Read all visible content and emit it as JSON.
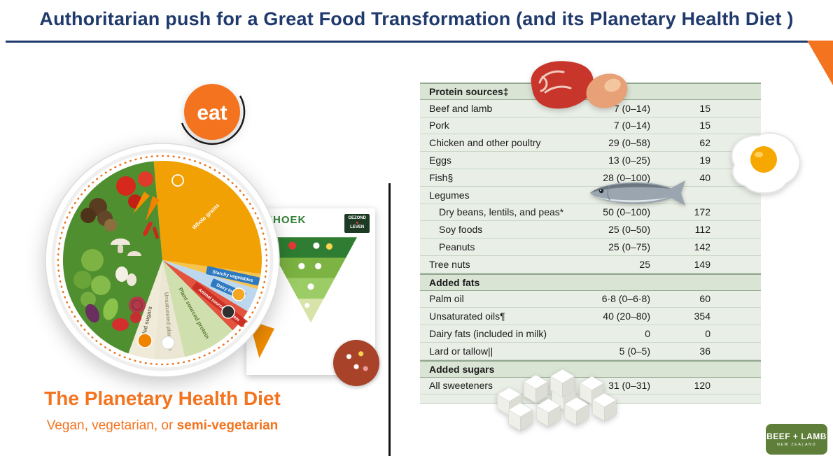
{
  "slide": {
    "title": "Authoritarian push for a Great Food Transformation (and its Planetary Health Diet )"
  },
  "eat_logo": {
    "text": "eat"
  },
  "plate": {
    "dashed_ring_color": "#e87722",
    "segments": [
      {
        "label": "Whole grains",
        "color": "#f2a104",
        "start": -5,
        "end": 98,
        "label_color": "#ffffff",
        "r": 88
      },
      {
        "label": "Starchy vegetables",
        "color": "#f6c44e",
        "start": 98,
        "end": 107,
        "ribbon": "#2e79c0"
      },
      {
        "label": "Dairy foods",
        "color": "#bcd7ee",
        "start": 107,
        "end": 121,
        "ribbon": "#2e79c0"
      },
      {
        "label": "Animal sourced protein",
        "color": "#e2543f",
        "start": 121,
        "end": 135,
        "ribbon": "#cc2f24"
      },
      {
        "label": "Plant sourced protein",
        "color": "#cfe0ae",
        "start": 135,
        "end": 167,
        "label_color": "#5a7a33",
        "r": 88
      },
      {
        "label": "Unsaturated plant oils",
        "color": "#ece7d4",
        "start": 167,
        "end": 185,
        "label_color": "#9a9a7a",
        "r": 88
      },
      {
        "label": "Added sugars",
        "color": "#f0ead8",
        "start": 185,
        "end": 200,
        "label_color": "#6b6b4f",
        "r": 95
      },
      {
        "label": "",
        "color": "#4f8f2f",
        "start": 200,
        "end": 355
      }
    ]
  },
  "caption": {
    "title": "The Planetary Health Diet",
    "sub_prefix": "Vegan, vegetarian, or ",
    "sub_bold": "semi-vegetarian"
  },
  "triangle_card": {
    "title": "RIEHOEK",
    "badge_top": "GEZOND",
    "badge_bottom": "LEVEN"
  },
  "table": {
    "sections": [
      {
        "header": "Protein sources‡",
        "rows": [
          {
            "label": "Beef and lamb",
            "amount": "7 (0–14)",
            "kcal": "15"
          },
          {
            "label": "Pork",
            "amount": "7 (0–14)",
            "kcal": "15"
          },
          {
            "label": "Chicken and other poultry",
            "amount": "29 (0–58)",
            "kcal": "62"
          },
          {
            "label": "Eggs",
            "amount": "13 (0–25)",
            "kcal": "19"
          },
          {
            "label": "Fish§",
            "amount": "28 (0–100)",
            "kcal": "40"
          },
          {
            "label": "Legumes",
            "amount": "",
            "kcal": ""
          },
          {
            "label": "Dry beans, lentils, and peas*",
            "amount": "50 (0–100)",
            "kcal": "172",
            "indent": true
          },
          {
            "label": "Soy foods",
            "amount": "25 (0–50)",
            "kcal": "112",
            "indent": true
          },
          {
            "label": "Peanuts",
            "amount": "25 (0–75)",
            "kcal": "142",
            "indent": true
          },
          {
            "label": "Tree nuts",
            "amount": "25",
            "kcal": "149"
          }
        ]
      },
      {
        "header": "Added fats",
        "rows": [
          {
            "label": "Palm oil",
            "amount": "6·8 (0–6·8)",
            "kcal": "60"
          },
          {
            "label": "Unsaturated oils¶",
            "amount": "40 (20–80)",
            "kcal": "354"
          },
          {
            "label": "Dairy fats (included in milk)",
            "amount": "0",
            "kcal": "0"
          },
          {
            "label": "Lard or tallow||",
            "amount": "5 (0–5)",
            "kcal": "36"
          }
        ]
      },
      {
        "header": "Added sugars",
        "rows": [
          {
            "label": "All sweeteners",
            "amount": "31 (0–31)",
            "kcal": "120"
          }
        ]
      }
    ]
  },
  "images": {
    "meat": "raw-meat",
    "egg": "fried-egg",
    "fish": "sardine-fish",
    "sugar": "sugar-cubes"
  },
  "logo": {
    "line1": "BEEF + LAMB",
    "line2": "NEW ZEALAND"
  }
}
